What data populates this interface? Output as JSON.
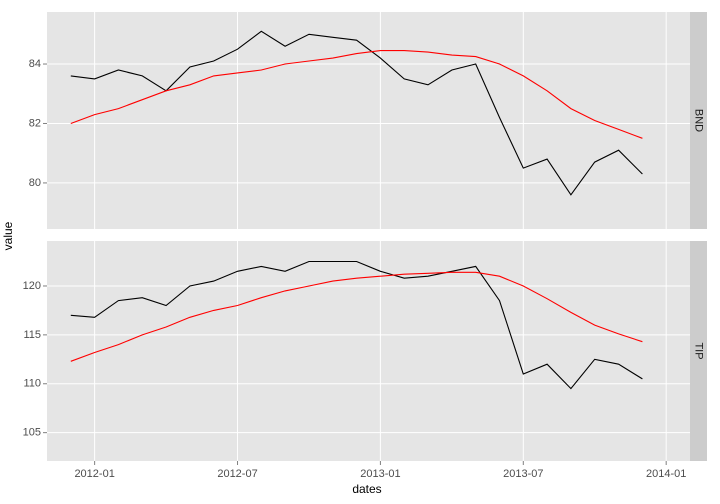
{
  "chart_data": {
    "type": "line",
    "xlabel": "dates",
    "ylabel": "value",
    "x": [
      "2011-12",
      "2012-01",
      "2012-02",
      "2012-03",
      "2012-04",
      "2012-05",
      "2012-06",
      "2012-07",
      "2012-08",
      "2012-09",
      "2012-10",
      "2012-11",
      "2012-12",
      "2013-01",
      "2013-02",
      "2013-03",
      "2013-04",
      "2013-05",
      "2013-06",
      "2013-07",
      "2013-08",
      "2013-09",
      "2013-10",
      "2013-11",
      "2013-12"
    ],
    "xlim": [
      "2011-11",
      "2014-02"
    ],
    "xticks": [
      "2012-01",
      "2012-07",
      "2013-01",
      "2013-07",
      "2014-01"
    ],
    "grid": true,
    "panels": [
      {
        "label": "BND",
        "ylim": [
          78.45,
          85.75
        ],
        "yticks": [
          80,
          82,
          84
        ],
        "series": [
          {
            "color": "#000000",
            "values": [
              83.6,
              83.5,
              83.8,
              83.6,
              83.1,
              83.9,
              84.1,
              84.5,
              85.1,
              84.6,
              85.0,
              84.9,
              84.8,
              84.2,
              83.5,
              83.3,
              83.8,
              84.0,
              82.2,
              80.5,
              80.8,
              79.6,
              80.7,
              81.1,
              80.3
            ]
          },
          {
            "color": "#ff0000",
            "values": [
              82.0,
              82.3,
              82.5,
              82.8,
              83.1,
              83.3,
              83.6,
              83.7,
              83.8,
              84.0,
              84.1,
              84.2,
              84.35,
              84.45,
              84.45,
              84.4,
              84.3,
              84.25,
              84.0,
              83.6,
              83.1,
              82.5,
              82.1,
              81.8,
              81.5
            ]
          }
        ]
      },
      {
        "label": "TIP",
        "ylim": [
          102.1,
          124.6
        ],
        "yticks": [
          105,
          110,
          115,
          120
        ],
        "series": [
          {
            "color": "#000000",
            "values": [
              117.0,
              116.8,
              118.5,
              118.8,
              118.0,
              120.0,
              120.5,
              121.5,
              122.0,
              121.5,
              122.5,
              122.5,
              122.5,
              121.5,
              120.8,
              121.0,
              121.5,
              122.0,
              118.5,
              111.0,
              112.0,
              109.5,
              112.5,
              112.0,
              110.5
            ]
          },
          {
            "color": "#ff0000",
            "values": [
              112.3,
              113.2,
              114.0,
              115.0,
              115.8,
              116.8,
              117.5,
              118.0,
              118.8,
              119.5,
              120.0,
              120.5,
              120.8,
              121.0,
              121.2,
              121.3,
              121.4,
              121.4,
              121.0,
              120.0,
              118.7,
              117.3,
              116.0,
              115.1,
              114.3
            ]
          }
        ]
      }
    ]
  }
}
